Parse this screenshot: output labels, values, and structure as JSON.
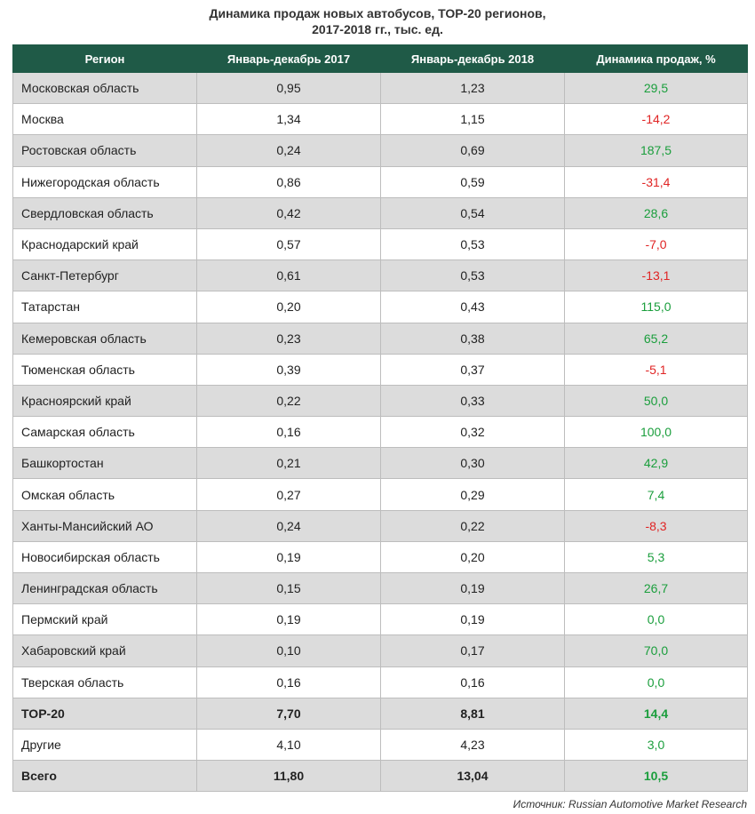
{
  "title": {
    "line1": "Динамика продаж новых автобусов, ТОР-20 регионов,",
    "line2": "2017-2018 гг., тыс. ед."
  },
  "colors": {
    "header_bg": "#1f5a47",
    "positive": "#1a9e3c",
    "negative": "#e02424",
    "stripe": "#dcdcdc"
  },
  "table": {
    "headers": [
      "Регион",
      "Январь-декабрь 2017",
      "Январь-декабрь 2018",
      "Динамика продаж, %"
    ],
    "rows": [
      {
        "region": "Московская область",
        "y2017": "0,95",
        "y2018": "1,23",
        "change": "29,5",
        "trend": "pos"
      },
      {
        "region": "Москва",
        "y2017": "1,34",
        "y2018": "1,15",
        "change": "-14,2",
        "trend": "neg"
      },
      {
        "region": "Ростовская область",
        "y2017": "0,24",
        "y2018": "0,69",
        "change": "187,5",
        "trend": "pos"
      },
      {
        "region": "Нижегородская область",
        "y2017": "0,86",
        "y2018": "0,59",
        "change": "-31,4",
        "trend": "neg"
      },
      {
        "region": "Свердловская область",
        "y2017": "0,42",
        "y2018": "0,54",
        "change": "28,6",
        "trend": "pos"
      },
      {
        "region": "Краснодарский край",
        "y2017": "0,57",
        "y2018": "0,53",
        "change": "-7,0",
        "trend": "neg"
      },
      {
        "region": "Санкт-Петербург",
        "y2017": "0,61",
        "y2018": "0,53",
        "change": "-13,1",
        "trend": "neg"
      },
      {
        "region": "Татарстан",
        "y2017": "0,20",
        "y2018": "0,43",
        "change": "115,0",
        "trend": "pos"
      },
      {
        "region": "Кемеровская область",
        "y2017": "0,23",
        "y2018": "0,38",
        "change": "65,2",
        "trend": "pos"
      },
      {
        "region": "Тюменская область",
        "y2017": "0,39",
        "y2018": "0,37",
        "change": "-5,1",
        "trend": "neg"
      },
      {
        "region": "Красноярский край",
        "y2017": "0,22",
        "y2018": "0,33",
        "change": "50,0",
        "trend": "pos"
      },
      {
        "region": "Самарская область",
        "y2017": "0,16",
        "y2018": "0,32",
        "change": "100,0",
        "trend": "pos"
      },
      {
        "region": "Башкортостан",
        "y2017": "0,21",
        "y2018": "0,30",
        "change": "42,9",
        "trend": "pos"
      },
      {
        "region": "Омская область",
        "y2017": "0,27",
        "y2018": "0,29",
        "change": "7,4",
        "trend": "pos"
      },
      {
        "region": "Ханты-Мансийский АО",
        "y2017": "0,24",
        "y2018": "0,22",
        "change": "-8,3",
        "trend": "neg"
      },
      {
        "region": "Новосибирская область",
        "y2017": "0,19",
        "y2018": "0,20",
        "change": "5,3",
        "trend": "pos"
      },
      {
        "region": "Ленинградская область",
        "y2017": "0,15",
        "y2018": "0,19",
        "change": "26,7",
        "trend": "pos"
      },
      {
        "region": "Пермский край",
        "y2017": "0,19",
        "y2018": "0,19",
        "change": "0,0",
        "trend": "pos"
      },
      {
        "region": "Хабаровский край",
        "y2017": "0,10",
        "y2018": "0,17",
        "change": "70,0",
        "trend": "pos"
      },
      {
        "region": "Тверская область",
        "y2017": "0,16",
        "y2018": "0,16",
        "change": "0,0",
        "trend": "pos"
      },
      {
        "region": "TOP-20",
        "y2017": "7,70",
        "y2018": "8,81",
        "change": "14,4",
        "trend": "pos",
        "bold": true
      },
      {
        "region": "Другие",
        "y2017": "4,10",
        "y2018": "4,23",
        "change": "3,0",
        "trend": "pos"
      },
      {
        "region": "Всего",
        "y2017": "11,80",
        "y2018": "13,04",
        "change": "10,5",
        "trend": "pos",
        "bold": true
      }
    ]
  },
  "source": "Источник: Russian Automotive Market Research"
}
